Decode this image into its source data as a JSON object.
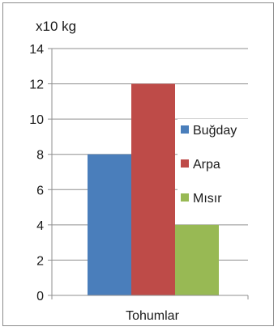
{
  "chart_data": {
    "type": "bar",
    "unit_label": "x10 kg",
    "categories": [
      "Tohumlar"
    ],
    "series": [
      {
        "name": "Buğday",
        "values": [
          8
        ],
        "color": "#4a7ebb"
      },
      {
        "name": "Arpa",
        "values": [
          12
        ],
        "color": "#be4b48"
      },
      {
        "name": "Mısır",
        "values": [
          4
        ],
        "color": "#98b954"
      }
    ],
    "ylim": [
      0,
      14
    ],
    "yticks": [
      "0",
      "2",
      "4",
      "6",
      "8",
      "10",
      "12",
      "14"
    ],
    "grid": true,
    "legend": "right"
  }
}
